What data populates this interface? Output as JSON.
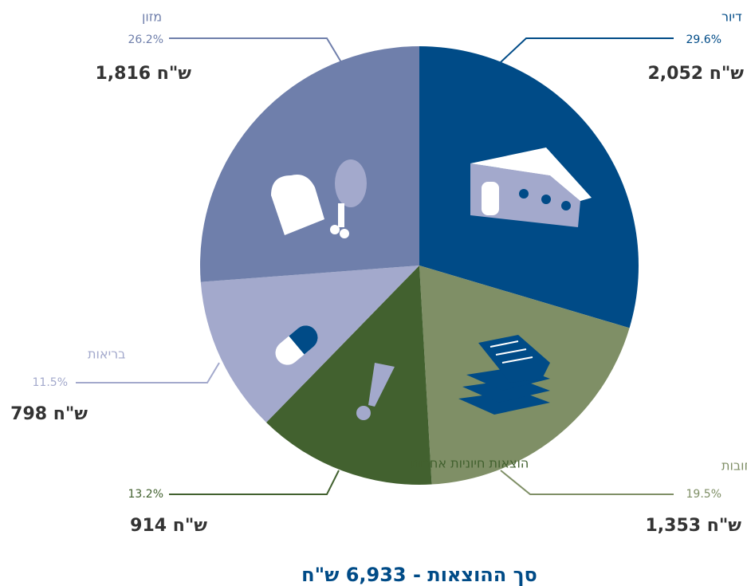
{
  "chart_data": {
    "type": "pie",
    "categories": [
      "דיור",
      "תשלום חובות",
      "הוצאות חיוניות אחרות",
      "בריאות",
      "מזון"
    ],
    "values": [
      29.6,
      19.5,
      13.2,
      11.5,
      26.2
    ],
    "value_labels": [
      "29.6%",
      "19.5%",
      "13.2%",
      "11.5%",
      "26.2%"
    ],
    "amount_labels": [
      "2,052 ש\"ח",
      "1,353 ש\"ח",
      "914 ש\"ח",
      "798 ש\"ח",
      "1,816 ש\"ח"
    ],
    "colors": [
      "#004b87",
      "#7f8f66",
      "#42612f",
      "#a3a9cc",
      "#6f7fab"
    ],
    "total_label": "סך ההוצאות - 6,933 ש\"ח"
  }
}
